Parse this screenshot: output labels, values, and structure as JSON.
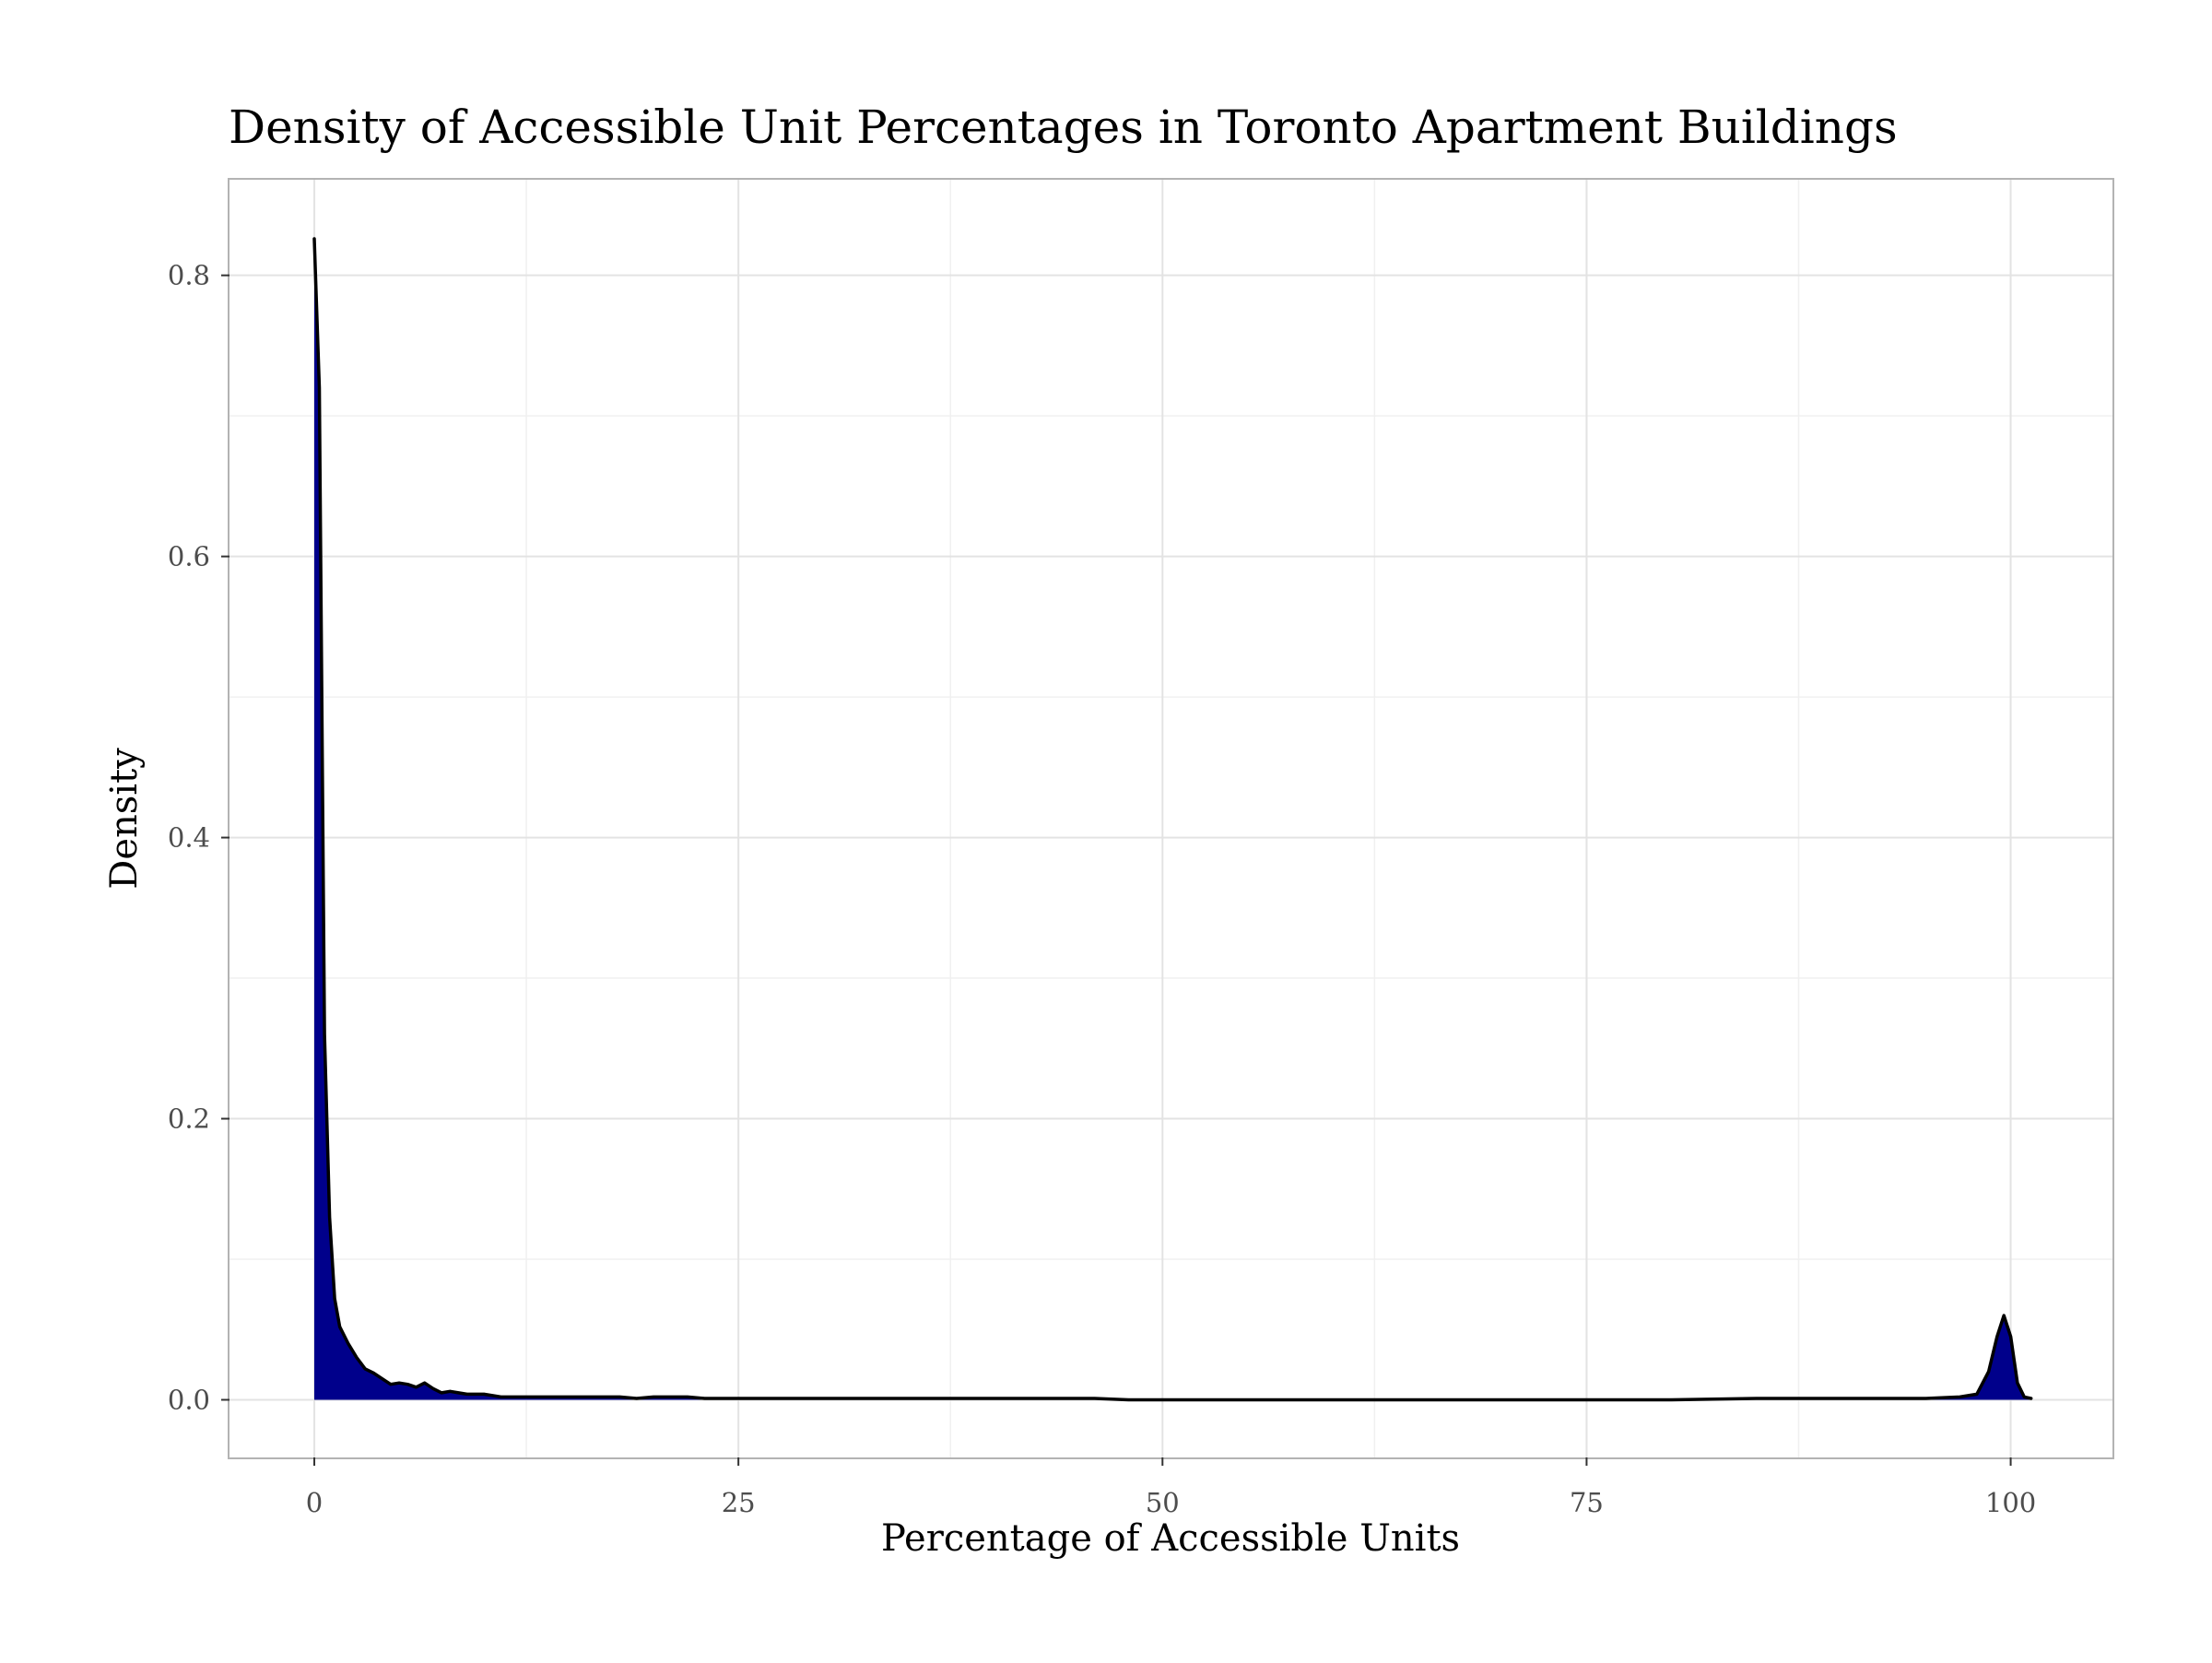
{
  "chart_data": {
    "type": "area",
    "title": "Density of Accessible Unit Percentages in Toronto Apartment Buildings",
    "xlabel": "Percentage of Accessible Units",
    "ylabel": "Density",
    "xlim": [
      -5,
      106
    ],
    "ylim": [
      -0.041,
      0.868
    ],
    "x_ticks": [
      0,
      25,
      50,
      75,
      100
    ],
    "x_tick_labels": [
      "0",
      "25",
      "50",
      "75",
      "100"
    ],
    "y_ticks": [
      0.0,
      0.2,
      0.4,
      0.6,
      0.8
    ],
    "y_tick_labels": [
      "0.0",
      "0.2",
      "0.4",
      "0.6",
      "0.8"
    ],
    "grid": true,
    "legend": "none",
    "fill_color": "#00008B",
    "line_color": "#000000",
    "series": [
      {
        "x": [
          0,
          0.3,
          0.6,
          0.9,
          1.2,
          1.5,
          2,
          2.5,
          3,
          3.5,
          4,
          4.5,
          5,
          5.5,
          6,
          6.5,
          7,
          7.5,
          8,
          8.5,
          9,
          9.5,
          10,
          10.5,
          11,
          12,
          13,
          14,
          15,
          16,
          17,
          18,
          19,
          20,
          21,
          22,
          23,
          24,
          25,
          26,
          27,
          28,
          30,
          32,
          34,
          36,
          38,
          40,
          42,
          44,
          46,
          48,
          50,
          55,
          60,
          65,
          70,
          75,
          80,
          85,
          90,
          95,
          97,
          98,
          98.7,
          99.2,
          99.6,
          100,
          100.4,
          100.8,
          101.2
        ],
        "y": [
          0.826,
          0.72,
          0.26,
          0.13,
          0.072,
          0.052,
          0.04,
          0.03,
          0.022,
          0.019,
          0.015,
          0.011,
          0.012,
          0.011,
          0.009,
          0.012,
          0.008,
          0.005,
          0.006,
          0.005,
          0.004,
          0.004,
          0.004,
          0.003,
          0.002,
          0.002,
          0.002,
          0.002,
          0.002,
          0.002,
          0.002,
          0.002,
          0.001,
          0.002,
          0.002,
          0.002,
          0.001,
          0.001,
          0.001,
          0.001,
          0.001,
          0.001,
          0.001,
          0.001,
          0.001,
          0.001,
          0.001,
          0.001,
          0.001,
          0.001,
          0.001,
          0.0,
          0.0,
          0.0,
          0.0,
          0.0,
          0.0,
          0.0,
          0.0,
          0.001,
          0.001,
          0.001,
          0.002,
          0.004,
          0.02,
          0.045,
          0.06,
          0.045,
          0.012,
          0.002,
          0.001
        ]
      }
    ]
  }
}
